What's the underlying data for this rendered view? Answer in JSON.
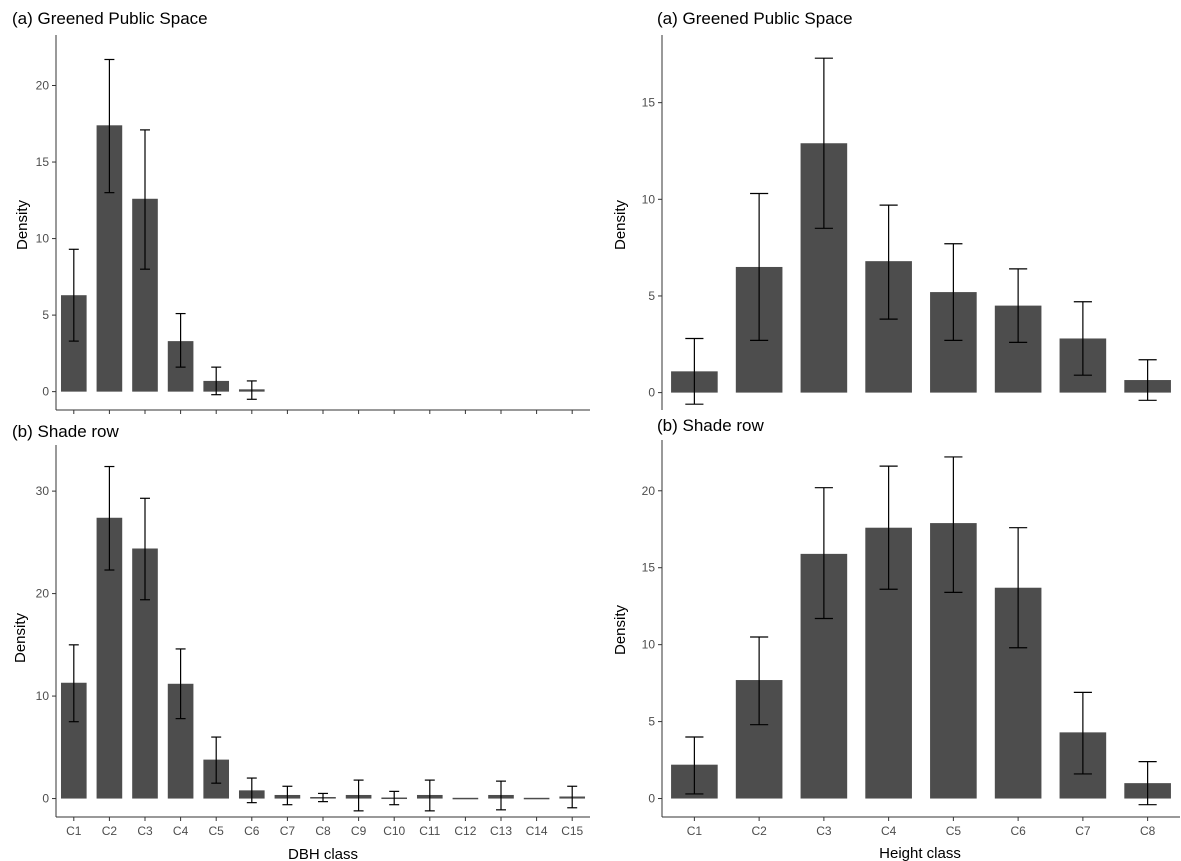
{
  "chart_data": [
    {
      "type": "bar",
      "title": "(a) Greened Public Space",
      "xlabel": "",
      "ylabel": "Density",
      "ylim": [
        -1.2,
        23.3
      ],
      "yticks": [
        0,
        5,
        10,
        15,
        20
      ],
      "categories": [
        "C1",
        "C2",
        "C3",
        "C4",
        "C5",
        "C6",
        "C7",
        "C8",
        "C9",
        "C10",
        "C11",
        "C12",
        "C13",
        "C14",
        "C15"
      ],
      "show_tick_labels": false,
      "values": [
        6.3,
        17.4,
        12.6,
        3.3,
        0.7,
        0.15,
        null,
        null,
        null,
        null,
        null,
        null,
        null,
        null,
        null
      ],
      "error_low": [
        3.3,
        13.0,
        8.0,
        1.6,
        -0.2,
        -0.5,
        null,
        null,
        null,
        null,
        null,
        null,
        null,
        null,
        null
      ],
      "error_high": [
        9.3,
        21.7,
        17.1,
        5.1,
        1.6,
        0.7,
        null,
        null,
        null,
        null,
        null,
        null,
        null,
        null,
        null
      ],
      "bar_color": "#4d4d4d",
      "grid": false
    },
    {
      "type": "bar",
      "title": "(b) Shade row",
      "xlabel": "DBH class",
      "ylabel": "Density",
      "ylim": [
        -1.8,
        34.5
      ],
      "yticks": [
        0,
        10,
        20,
        30
      ],
      "categories": [
        "C1",
        "C2",
        "C3",
        "C4",
        "C5",
        "C6",
        "C7",
        "C8",
        "C9",
        "C10",
        "C11",
        "C12",
        "C13",
        "C14",
        "C15"
      ],
      "show_tick_labels": true,
      "values": [
        11.3,
        27.4,
        24.4,
        11.2,
        3.8,
        0.8,
        0.35,
        0.15,
        0.35,
        0.1,
        0.35,
        0,
        0.35,
        0,
        0.2
      ],
      "error_low": [
        7.5,
        22.3,
        19.4,
        7.8,
        1.5,
        -0.4,
        -0.6,
        -0.3,
        -1.2,
        -0.6,
        -1.2,
        0,
        -1.1,
        0,
        -0.9
      ],
      "error_high": [
        15.0,
        32.4,
        29.3,
        14.6,
        6.0,
        2.0,
        1.2,
        0.5,
        1.8,
        0.7,
        1.8,
        0,
        1.7,
        0,
        1.2
      ],
      "bar_color": "#4d4d4d",
      "grid": false
    },
    {
      "type": "bar",
      "title": "(a) Greened Public Space",
      "xlabel": "",
      "ylabel": "Density",
      "ylim": [
        -0.9,
        18.5
      ],
      "yticks": [
        0,
        5,
        10,
        15
      ],
      "categories": [
        "C1",
        "C2",
        "C3",
        "C4",
        "C5",
        "C6",
        "C7",
        "C8"
      ],
      "show_tick_labels": false,
      "values": [
        1.1,
        6.5,
        12.9,
        6.8,
        5.2,
        4.5,
        2.8,
        0.65
      ],
      "error_low": [
        -0.6,
        2.7,
        8.5,
        3.8,
        2.7,
        2.6,
        0.9,
        -0.4
      ],
      "error_high": [
        2.8,
        10.3,
        17.3,
        9.7,
        7.7,
        6.4,
        4.7,
        1.7
      ],
      "bar_color": "#4d4d4d",
      "grid": false
    },
    {
      "type": "bar",
      "title": "(b) Shade row",
      "xlabel": "Height class",
      "ylabel": "Density",
      "ylim": [
        -1.2,
        23.3
      ],
      "yticks": [
        0,
        5,
        10,
        15,
        20
      ],
      "categories": [
        "C1",
        "C2",
        "C3",
        "C4",
        "C5",
        "C6",
        "C7",
        "C8"
      ],
      "show_tick_labels": true,
      "values": [
        2.2,
        7.7,
        15.9,
        17.6,
        17.9,
        13.7,
        4.3,
        1.0
      ],
      "error_low": [
        0.3,
        4.8,
        11.7,
        13.6,
        13.4,
        9.8,
        1.6,
        -0.4
      ],
      "error_high": [
        4.0,
        10.5,
        20.2,
        21.6,
        22.2,
        17.6,
        6.9,
        2.4
      ],
      "bar_color": "#4d4d4d",
      "grid": false
    }
  ]
}
